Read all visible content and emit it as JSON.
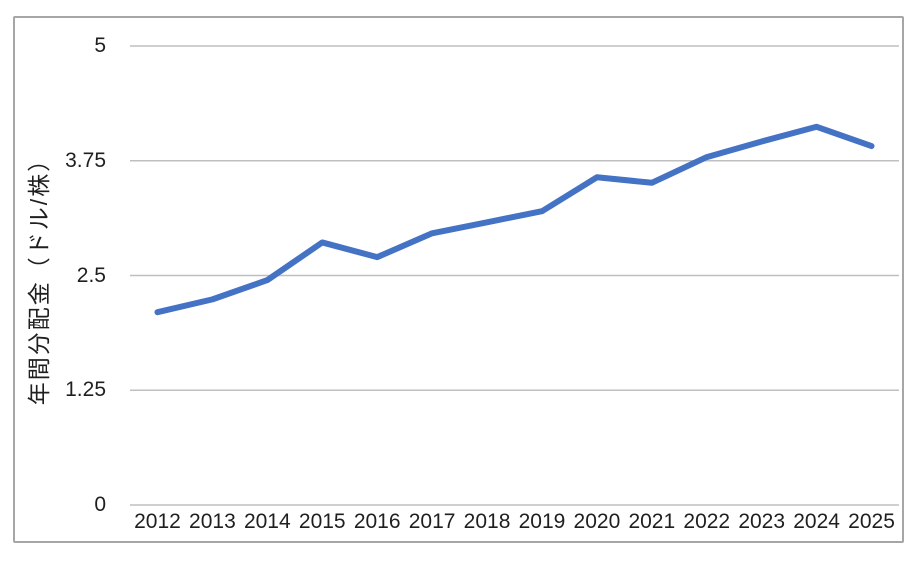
{
  "chart_data": {
    "type": "line",
    "title": "",
    "xlabel": "",
    "ylabel": "年間分配金（ドル/株）",
    "categories": [
      "2012",
      "2013",
      "2014",
      "2015",
      "2016",
      "2017",
      "2018",
      "2019",
      "2020",
      "2021",
      "2022",
      "2023",
      "2024",
      "2025"
    ],
    "values": [
      2.1,
      2.24,
      2.45,
      2.86,
      2.7,
      2.96,
      3.08,
      3.2,
      3.57,
      3.51,
      3.79,
      3.96,
      4.12,
      3.91
    ],
    "ylim": [
      0,
      5
    ],
    "yticks": [
      {
        "v": 0,
        "label": "0"
      },
      {
        "v": 1.25,
        "label": "1.25"
      },
      {
        "v": 2.5,
        "label": "2.5"
      },
      {
        "v": 3.75,
        "label": "3.75"
      },
      {
        "v": 5,
        "label": "5"
      }
    ],
    "grid": "horizontal",
    "legend_position": "none",
    "line_color": "#4472c4",
    "gridline_color": "#bfbfbf",
    "frame_border_color": "#a6a6a6"
  }
}
